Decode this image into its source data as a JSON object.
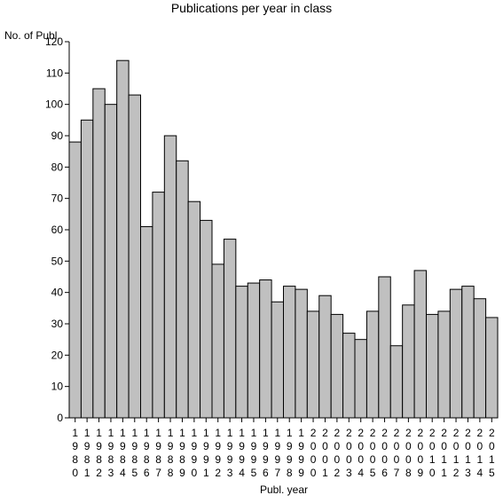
{
  "chart_data": {
    "type": "bar",
    "title": "Publications per year in class",
    "ylabel": "No. of Publ.",
    "xlabel": "Publ. year",
    "ylim": [
      0,
      120
    ],
    "yticks": [
      0,
      10,
      20,
      30,
      40,
      50,
      60,
      70,
      80,
      90,
      100,
      110,
      120
    ],
    "categories": [
      "1980",
      "1981",
      "1982",
      "1983",
      "1984",
      "1985",
      "1986",
      "1987",
      "1988",
      "1989",
      "1990",
      "1991",
      "1992",
      "1993",
      "1994",
      "1995",
      "1996",
      "1997",
      "1998",
      "1999",
      "2000",
      "2001",
      "2002",
      "2003",
      "2004",
      "2005",
      "2006",
      "2007",
      "2008",
      "2009",
      "2010",
      "2011",
      "2012",
      "2013",
      "2014",
      "2015"
    ],
    "values": [
      88,
      95,
      105,
      100,
      114,
      103,
      61,
      72,
      90,
      82,
      69,
      63,
      49,
      57,
      42,
      43,
      44,
      37,
      42,
      41,
      34,
      39,
      33,
      27,
      25,
      34,
      45,
      23,
      36,
      47,
      33,
      34,
      41,
      42,
      38,
      32
    ],
    "bar_color": "#c0c0c0",
    "grid": false
  }
}
